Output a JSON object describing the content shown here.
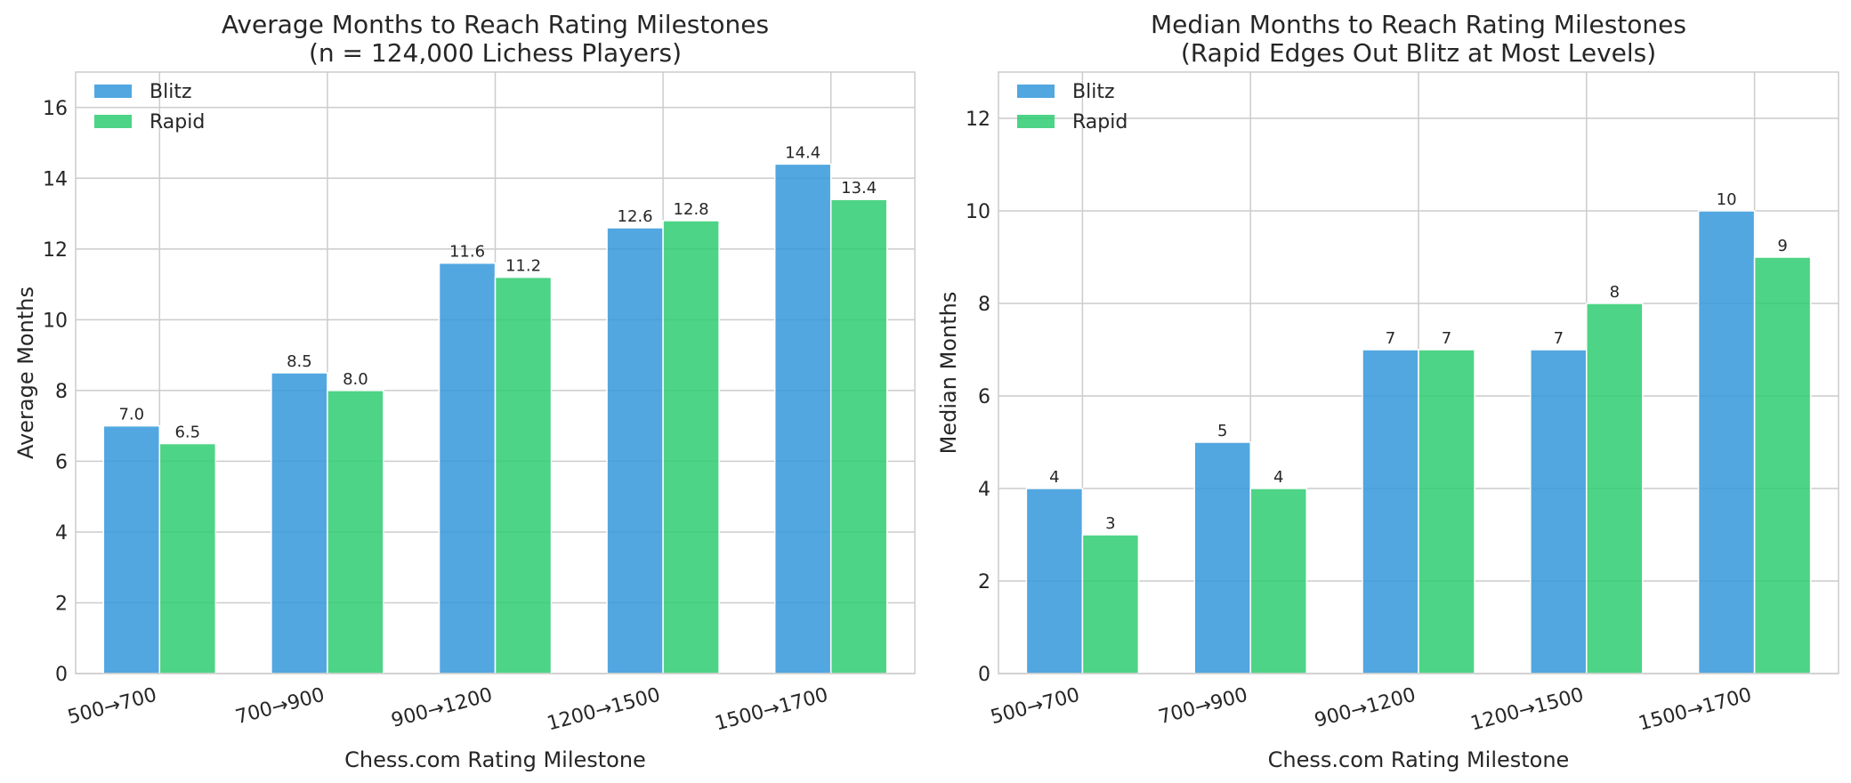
{
  "chart_data": [
    {
      "type": "bar",
      "title": "Average Months to Reach Rating Milestones",
      "subtitle": "(n = 124,000 Lichess Players)",
      "xlabel": "Chess.com Rating Milestone",
      "ylabel": "Average Months",
      "categories": [
        "500→700",
        "700→900",
        "900→1200",
        "1200→1500",
        "1500→1700"
      ],
      "series": [
        {
          "name": "Blitz",
          "color": "#3498db",
          "values": [
            7.0,
            8.5,
            11.6,
            12.6,
            14.4
          ],
          "labels": [
            "7.0",
            "8.5",
            "11.6",
            "12.6",
            "14.4"
          ]
        },
        {
          "name": "Rapid",
          "color": "#2ecc71",
          "values": [
            6.5,
            8.0,
            11.2,
            12.8,
            13.4
          ],
          "labels": [
            "6.5",
            "8.0",
            "11.2",
            "12.8",
            "13.4"
          ]
        }
      ],
      "ylim": [
        0,
        17
      ],
      "yticks": [
        0,
        2,
        4,
        6,
        8,
        10,
        12,
        14,
        16
      ],
      "grid": true,
      "legend_position": "top-left"
    },
    {
      "type": "bar",
      "title": "Median Months to Reach Rating Milestones",
      "subtitle": "(Rapid Edges Out Blitz at Most Levels)",
      "xlabel": "Chess.com Rating Milestone",
      "ylabel": "Median Months",
      "categories": [
        "500→700",
        "700→900",
        "900→1200",
        "1200→1500",
        "1500→1700"
      ],
      "series": [
        {
          "name": "Blitz",
          "color": "#3498db",
          "values": [
            4,
            5,
            7,
            7,
            10
          ],
          "labels": [
            "4",
            "5",
            "7",
            "7",
            "10"
          ]
        },
        {
          "name": "Rapid",
          "color": "#2ecc71",
          "values": [
            3,
            4,
            7,
            8,
            9
          ],
          "labels": [
            "3",
            "4",
            "7",
            "8",
            "9"
          ]
        }
      ],
      "ylim": [
        0,
        13
      ],
      "yticks": [
        0,
        2,
        4,
        6,
        8,
        10,
        12
      ],
      "grid": true,
      "legend_position": "top-left"
    }
  ]
}
